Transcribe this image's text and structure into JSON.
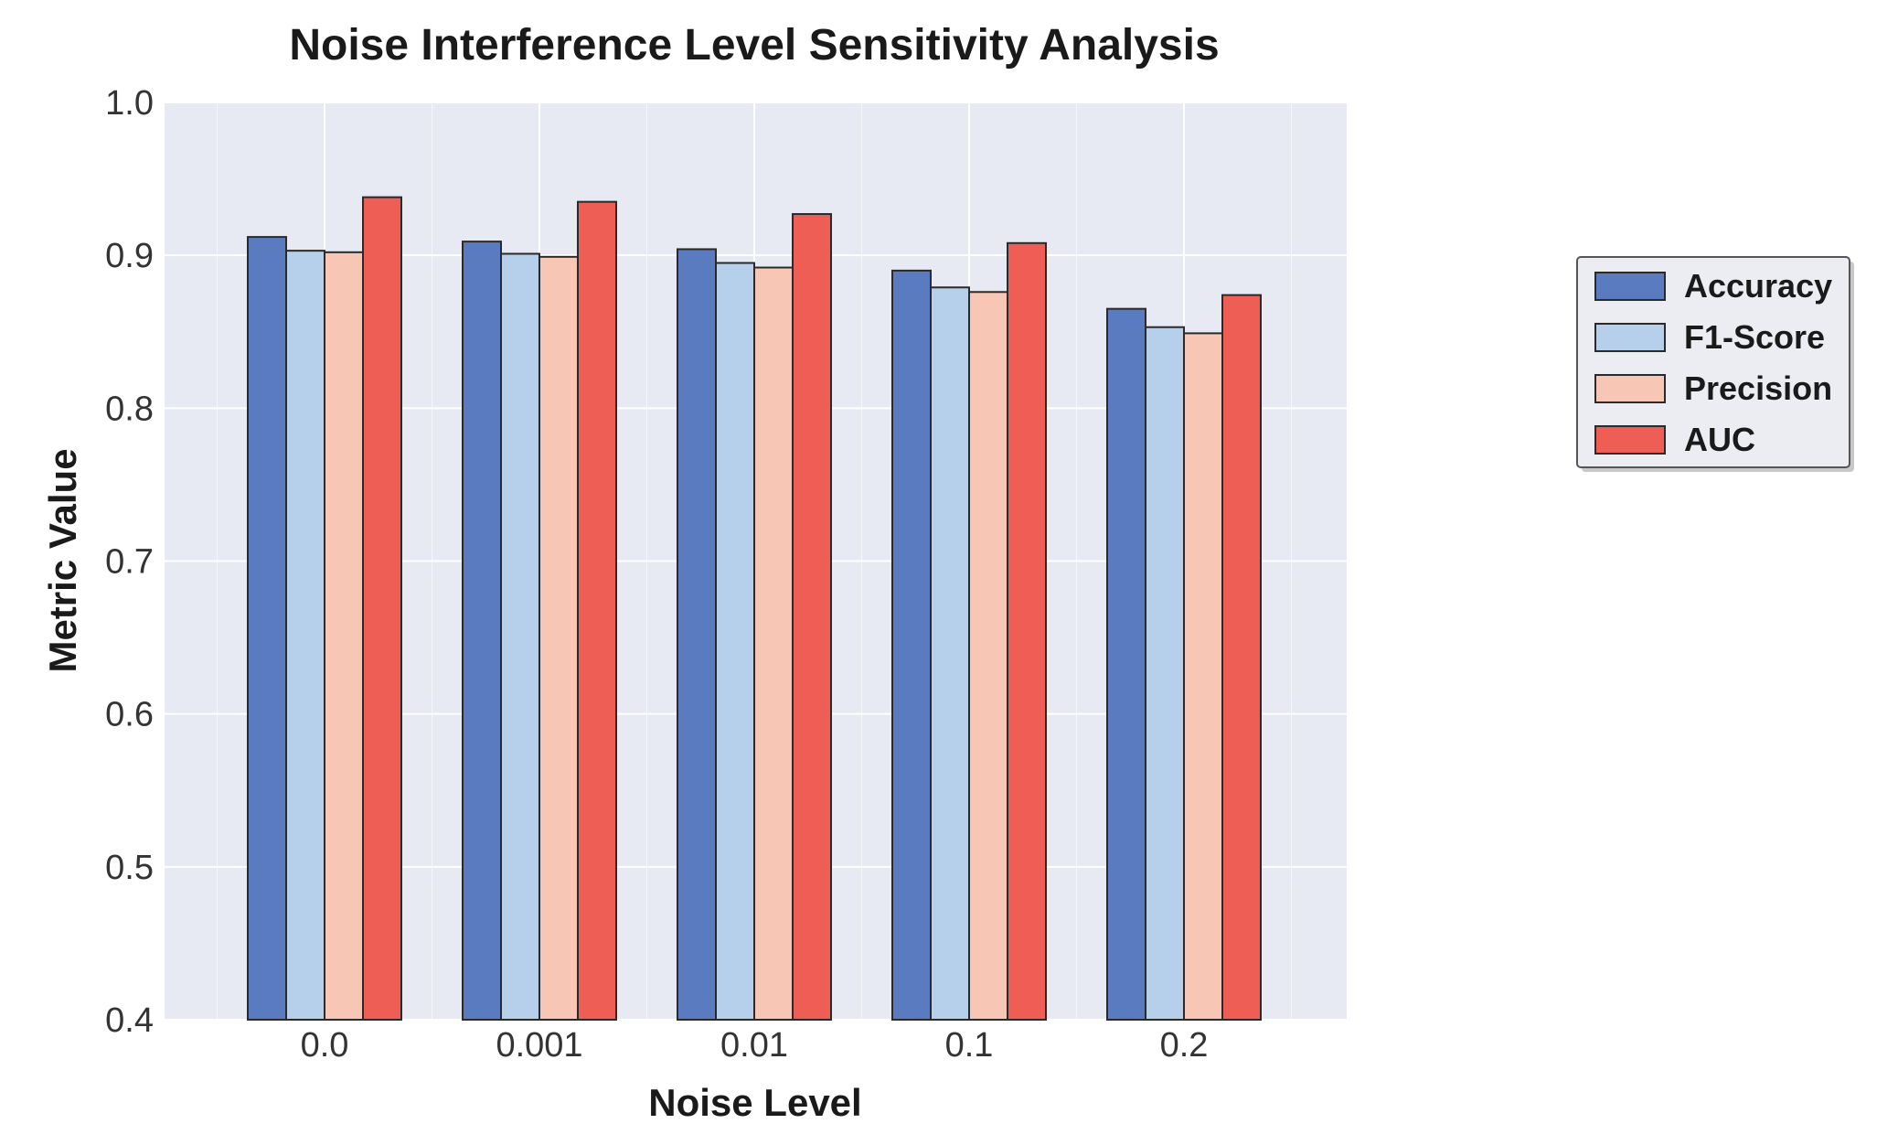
{
  "chart_data": {
    "type": "bar",
    "title": "Noise Interference Level Sensitivity Analysis",
    "xlabel": "Noise Level",
    "ylabel": "Metric Value",
    "ylim": [
      0.4,
      1.0
    ],
    "yticks": [
      "0.4",
      "0.5",
      "0.6",
      "0.7",
      "0.8",
      "0.9",
      "1.0"
    ],
    "ytick_values": [
      0.4,
      0.5,
      0.6,
      0.7,
      0.8,
      0.9,
      1.0
    ],
    "categories": [
      "0.0",
      "0.001",
      "0.01",
      "0.1",
      "0.2"
    ],
    "grid": true,
    "legend_position": "right",
    "series": [
      {
        "name": "Accuracy",
        "color": "#5b7bc0",
        "values": [
          0.912,
          0.909,
          0.904,
          0.89,
          0.865
        ]
      },
      {
        "name": "F1-Score",
        "color": "#b6cfea",
        "values": [
          0.903,
          0.901,
          0.895,
          0.879,
          0.853
        ]
      },
      {
        "name": "Precision",
        "color": "#f7c6b4",
        "values": [
          0.902,
          0.899,
          0.892,
          0.876,
          0.849
        ]
      },
      {
        "name": "AUC",
        "color": "#ee5e54",
        "values": [
          0.938,
          0.935,
          0.927,
          0.908,
          0.874
        ]
      }
    ],
    "colors": {
      "plot_background": "#e7eaf2",
      "grid": "#ffffff",
      "bar_edge": "#2a2a2a"
    }
  }
}
